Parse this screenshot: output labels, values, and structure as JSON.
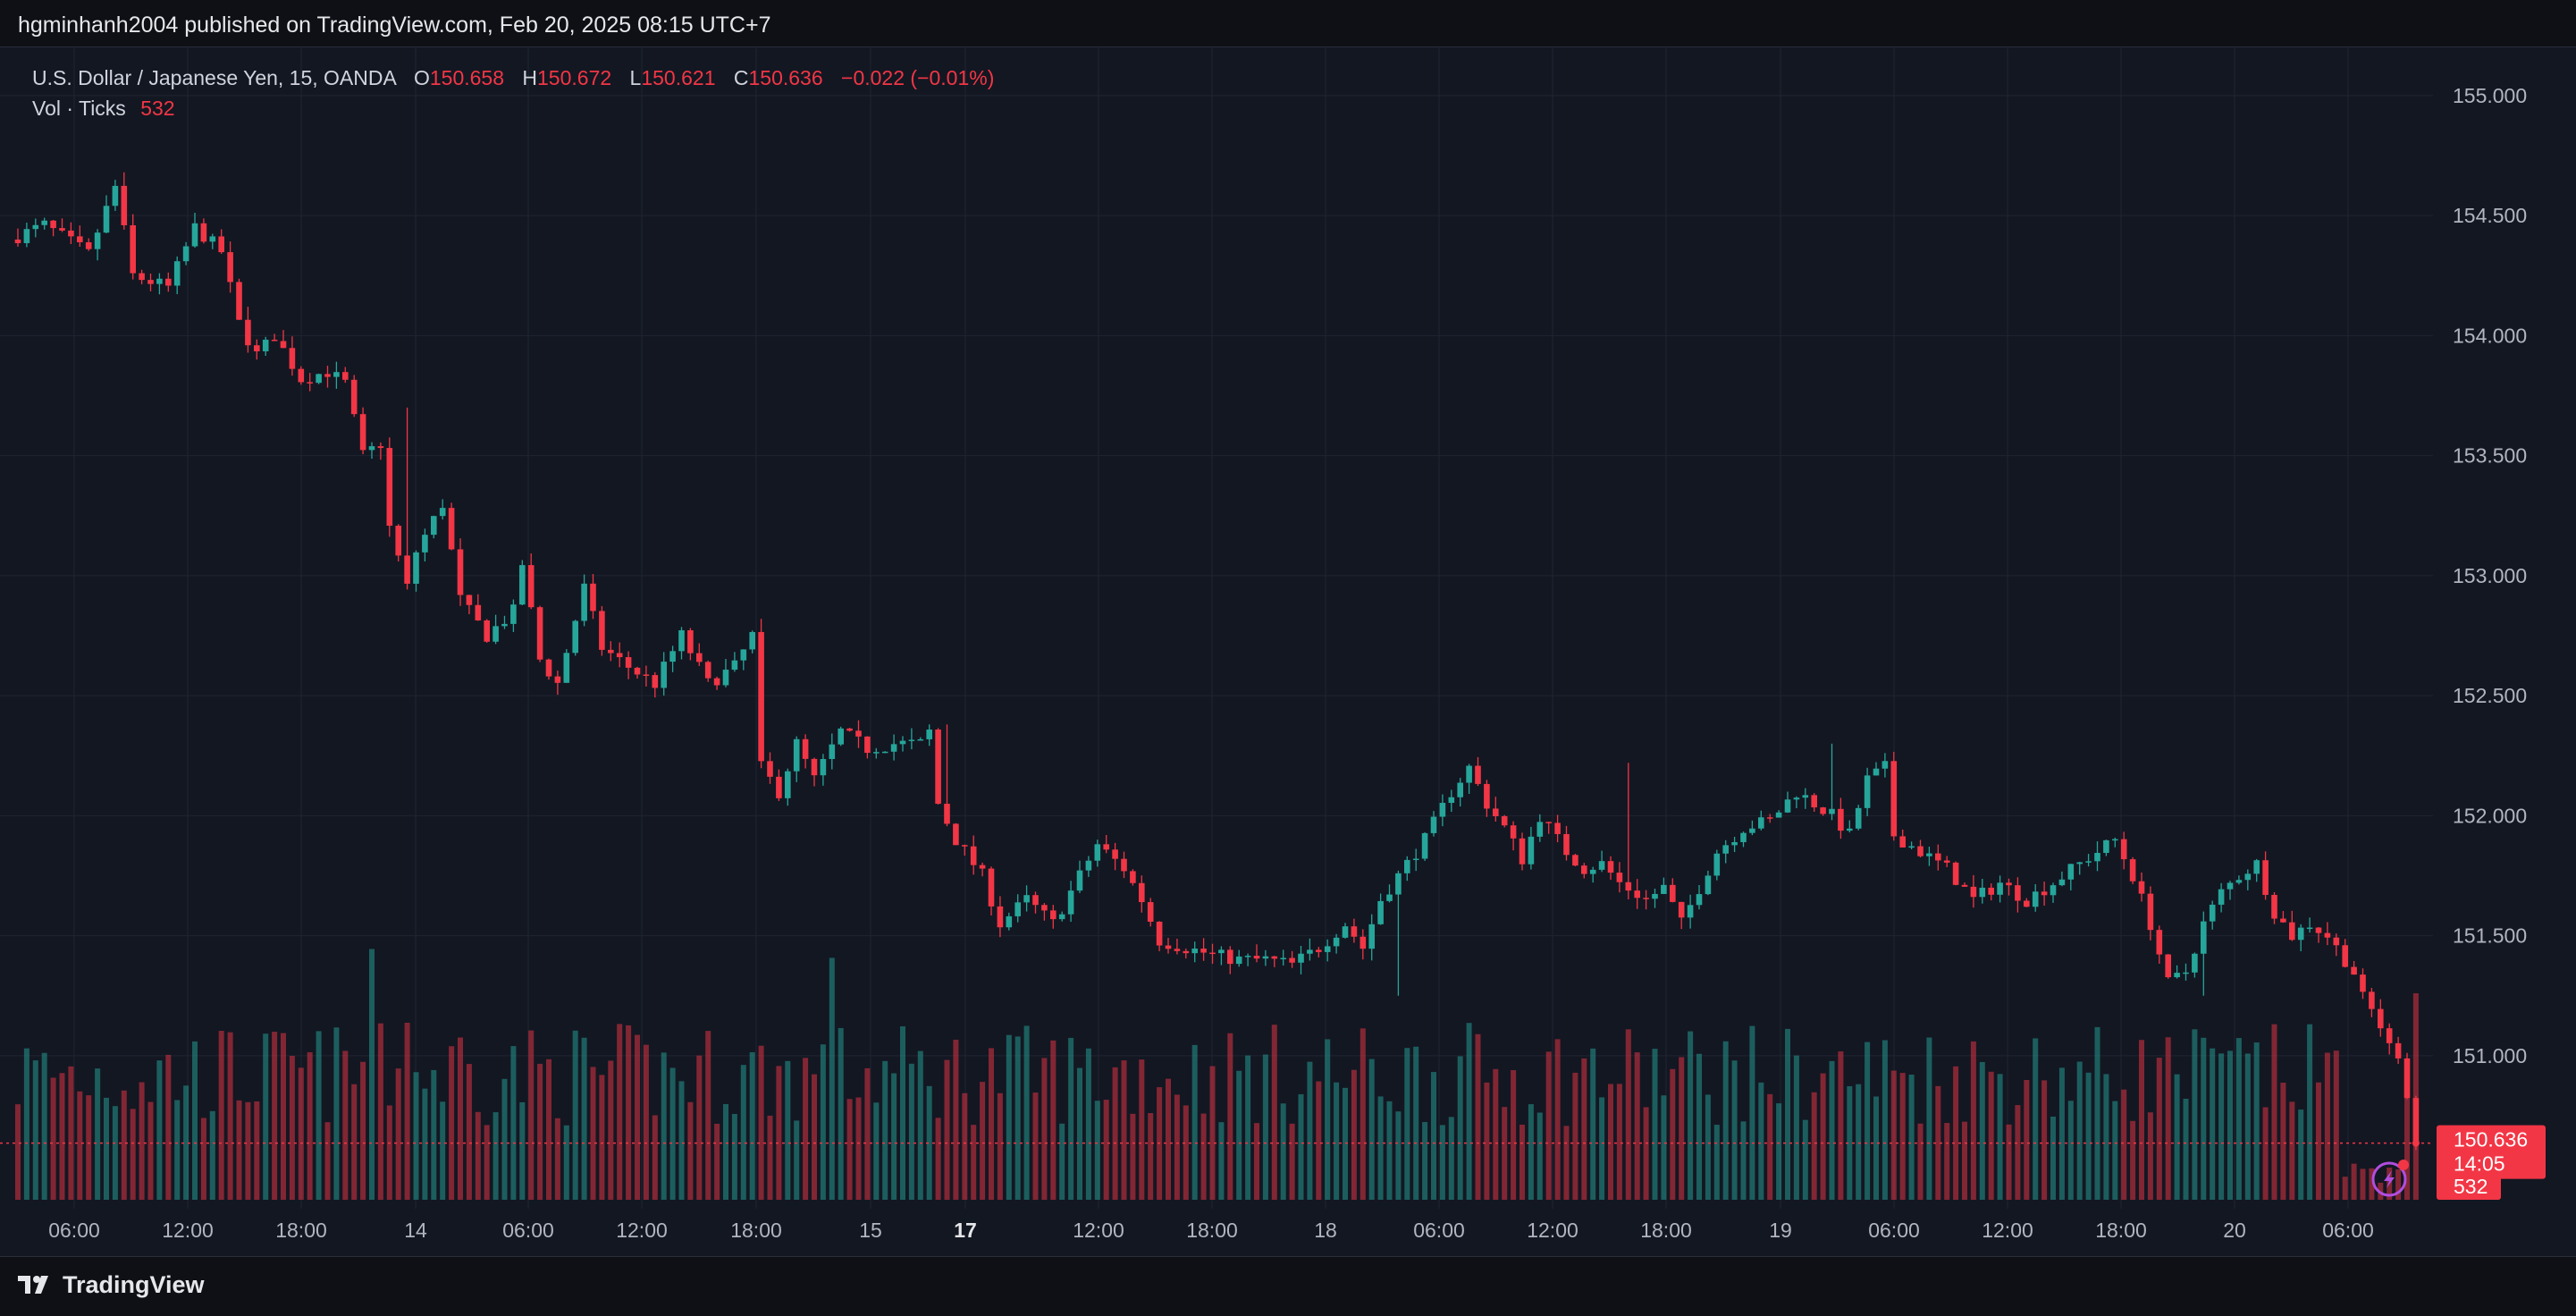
{
  "header": {
    "published_by": "hgminhanh2004 published on TradingView.com, Feb 20, 2025 08:15 UTC+7"
  },
  "legend": {
    "symbol": "U.S. Dollar / Japanese Yen, 15, OANDA",
    "open_label": "O",
    "open": "150.658",
    "high_label": "H",
    "high": "150.672",
    "low_label": "L",
    "low": "150.621",
    "close_label": "C",
    "close": "150.636",
    "change": "−0.022 (−0.01%)",
    "volume_label": "Vol · Ticks",
    "volume": "532"
  },
  "price_tag": {
    "price": "150.636",
    "countdown": "14:05"
  },
  "volume_tag": "532",
  "footer": {
    "brand": "TradingView"
  },
  "colors": {
    "up": "#26a69a",
    "down": "#f23645",
    "background": "#131722",
    "grid": "#1f2431",
    "axis_text": "#b2b5be"
  },
  "chart_data": {
    "type": "candlestick",
    "title": "U.S. Dollar / Japanese Yen, 15, OANDA",
    "y_axis": {
      "ticks": [
        "155.000",
        "154.500",
        "154.000",
        "153.500",
        "153.000",
        "152.500",
        "152.000",
        "151.500",
        "151.000"
      ],
      "ylim": [
        150.4,
        155.1
      ],
      "position": "right"
    },
    "x_axis": {
      "ticks": [
        "06:00",
        "12:00",
        "18:00",
        "14",
        "06:00",
        "12:00",
        "18:00",
        "15",
        "17",
        "12:00",
        "18:00",
        "18",
        "06:00",
        "12:00",
        "18:00",
        "19",
        "06:00",
        "12:00",
        "18:00",
        "20",
        "06:00"
      ],
      "bold_ticks": [
        "17"
      ]
    },
    "price_path": [
      [
        0,
        154.4
      ],
      [
        4,
        154.46
      ],
      [
        9,
        154.34
      ],
      [
        12,
        154.62
      ],
      [
        14,
        154.25
      ],
      [
        18,
        154.2
      ],
      [
        21,
        154.45
      ],
      [
        24,
        154.35
      ],
      [
        26,
        154.05
      ],
      [
        28,
        153.92
      ],
      [
        30,
        154.0
      ],
      [
        33,
        153.82
      ],
      [
        36,
        153.85
      ],
      [
        38,
        153.8
      ],
      [
        40,
        153.5
      ],
      [
        42,
        153.55
      ],
      [
        43,
        153.2
      ],
      [
        45,
        152.95
      ],
      [
        46,
        153.1
      ],
      [
        49,
        153.3
      ],
      [
        51,
        152.9
      ],
      [
        54,
        152.75
      ],
      [
        57,
        152.85
      ],
      [
        58,
        153.05
      ],
      [
        60,
        152.65
      ],
      [
        62,
        152.55
      ],
      [
        65,
        152.95
      ],
      [
        67,
        152.7
      ],
      [
        70,
        152.62
      ],
      [
        73,
        152.55
      ],
      [
        76,
        152.75
      ],
      [
        79,
        152.55
      ],
      [
        82,
        152.62
      ],
      [
        84,
        152.75
      ],
      [
        85,
        152.2
      ],
      [
        87,
        152.1
      ],
      [
        89,
        152.3
      ],
      [
        91,
        152.15
      ],
      [
        94,
        152.35
      ],
      [
        97,
        152.28
      ],
      [
        100,
        152.3
      ],
      [
        103,
        152.3
      ],
      [
        104,
        152.35
      ],
      [
        105,
        152.05
      ],
      [
        107,
        151.9
      ],
      [
        110,
        151.75
      ],
      [
        112,
        151.55
      ],
      [
        115,
        151.65
      ],
      [
        118,
        151.55
      ],
      [
        121,
        151.75
      ],
      [
        123,
        151.88
      ],
      [
        126,
        151.78
      ],
      [
        128,
        151.65
      ],
      [
        130,
        151.48
      ],
      [
        133,
        151.45
      ],
      [
        136,
        151.42
      ],
      [
        139,
        151.4
      ],
      [
        142,
        151.4
      ],
      [
        145,
        151.38
      ],
      [
        148,
        151.45
      ],
      [
        151,
        151.55
      ],
      [
        153,
        151.45
      ],
      [
        155,
        151.65
      ],
      [
        157,
        151.75
      ],
      [
        160,
        151.9
      ],
      [
        163,
        152.1
      ],
      [
        165,
        152.2
      ],
      [
        167,
        152.05
      ],
      [
        169,
        151.95
      ],
      [
        171,
        151.82
      ],
      [
        173,
        152.0
      ],
      [
        176,
        151.85
      ],
      [
        178,
        151.78
      ],
      [
        180,
        151.8
      ],
      [
        182,
        151.72
      ],
      [
        185,
        151.65
      ],
      [
        187,
        151.7
      ],
      [
        189,
        151.55
      ],
      [
        191,
        151.7
      ],
      [
        193,
        151.85
      ],
      [
        196,
        151.95
      ],
      [
        199,
        151.98
      ],
      [
        202,
        152.1
      ],
      [
        204,
        152.05
      ],
      [
        206,
        152.0
      ],
      [
        208,
        151.92
      ],
      [
        210,
        152.15
      ],
      [
        212,
        152.2
      ],
      [
        213,
        151.92
      ],
      [
        216,
        151.85
      ],
      [
        219,
        151.78
      ],
      [
        222,
        151.65
      ],
      [
        225,
        151.72
      ],
      [
        228,
        151.65
      ],
      [
        231,
        151.72
      ],
      [
        234,
        151.8
      ],
      [
        236,
        151.85
      ],
      [
        238,
        151.9
      ],
      [
        240,
        151.75
      ],
      [
        242,
        151.55
      ],
      [
        244,
        151.3
      ],
      [
        246,
        151.35
      ],
      [
        248,
        151.55
      ],
      [
        250,
        151.68
      ],
      [
        252,
        151.75
      ],
      [
        254,
        151.8
      ],
      [
        256,
        151.6
      ],
      [
        258,
        151.5
      ],
      [
        260,
        151.55
      ],
      [
        262,
        151.5
      ],
      [
        264,
        151.4
      ],
      [
        266,
        151.25
      ],
      [
        268,
        151.1
      ],
      [
        270,
        151.0
      ],
      [
        271,
        150.85
      ],
      [
        272,
        150.64
      ]
    ],
    "spikes": [
      [
        12,
        154.68
      ],
      [
        26,
        154.12
      ],
      [
        44,
        153.7
      ],
      [
        84,
        152.82
      ],
      [
        105,
        152.38
      ],
      [
        156,
        151.25
      ],
      [
        182,
        152.22
      ],
      [
        205,
        152.3
      ],
      [
        247,
        151.25
      ]
    ],
    "volume_spikes": [
      [
        40,
        0.85
      ],
      [
        44,
        0.6
      ],
      [
        50,
        0.55
      ],
      [
        92,
        0.82
      ],
      [
        210,
        0.35
      ],
      [
        270,
        0.45
      ],
      [
        271,
        0.7
      ]
    ]
  }
}
